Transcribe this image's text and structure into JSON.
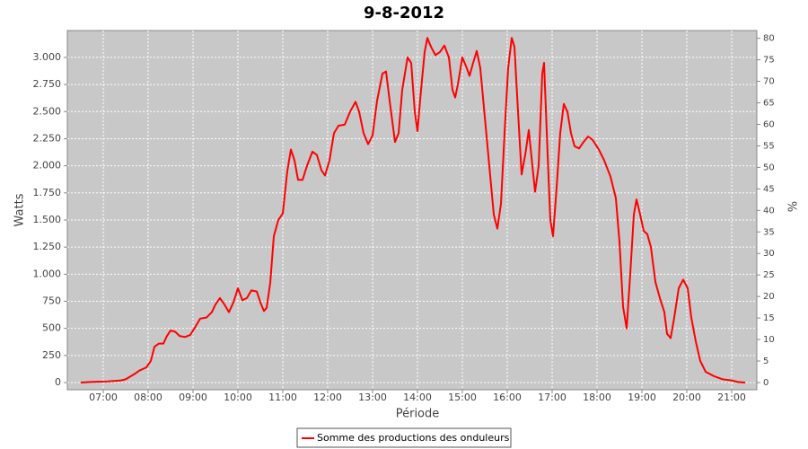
{
  "chart_data": {
    "type": "line",
    "title": "9-8-2012",
    "x_label": "Période",
    "y_label": "Watts",
    "y2_label": "%",
    "xlim": [
      6.2,
      21.56
    ],
    "xticks": [
      {
        "value": 7,
        "label": "07:00"
      },
      {
        "value": 8,
        "label": "08:00"
      },
      {
        "value": 9,
        "label": "09:00"
      },
      {
        "value": 10,
        "label": "10:00"
      },
      {
        "value": 11,
        "label": "11:00"
      },
      {
        "value": 12,
        "label": "12:00"
      },
      {
        "value": 13,
        "label": "13:00"
      },
      {
        "value": 14,
        "label": "14:00"
      },
      {
        "value": 15,
        "label": "15:00"
      },
      {
        "value": 16,
        "label": "16:00"
      },
      {
        "value": 17,
        "label": "17:00"
      },
      {
        "value": 18,
        "label": "18:00"
      },
      {
        "value": 19,
        "label": "19:00"
      },
      {
        "value": 20,
        "label": "20:00"
      },
      {
        "value": 21,
        "label": "21:00"
      }
    ],
    "ylim": [
      -66,
      3248
    ],
    "yticks": [
      0,
      250,
      500,
      750,
      {
        "value": 1000,
        "label": "1.000"
      },
      {
        "value": 1250,
        "label": "1.250"
      },
      {
        "value": 1500,
        "label": "1.500"
      },
      {
        "value": 1750,
        "label": "1.750"
      },
      {
        "value": 2000,
        "label": "2.000"
      },
      {
        "value": 2250,
        "label": "2.250"
      },
      {
        "value": 2500,
        "label": "2.500"
      },
      {
        "value": 2750,
        "label": "2.750"
      },
      {
        "value": 3000,
        "label": "3.000"
      }
    ],
    "y2lim": [
      -1.67,
      81.8
    ],
    "y2ticks": [
      0,
      5,
      10,
      15,
      20,
      25,
      30,
      35,
      40,
      45,
      50,
      55,
      60,
      65,
      70,
      75,
      80
    ],
    "grid": true,
    "legend": "bottom",
    "x": [
      6.5,
      6.7,
      7.1,
      7.4,
      7.5,
      7.7,
      7.8,
      7.96,
      8.06,
      8.14,
      8.24,
      8.34,
      8.42,
      8.5,
      8.6,
      8.7,
      8.82,
      8.94,
      9.06,
      9.16,
      9.3,
      9.42,
      9.5,
      9.6,
      9.7,
      9.8,
      9.9,
      10.0,
      10.1,
      10.2,
      10.3,
      10.42,
      10.5,
      10.58,
      10.64,
      10.72,
      10.8,
      10.9,
      11.0,
      11.1,
      11.18,
      11.26,
      11.34,
      11.44,
      11.54,
      11.66,
      11.76,
      11.86,
      11.94,
      12.04,
      12.14,
      12.24,
      12.38,
      12.5,
      12.62,
      12.7,
      12.8,
      12.9,
      13.0,
      13.1,
      13.22,
      13.3,
      13.38,
      13.5,
      13.58,
      13.66,
      13.78,
      13.86,
      13.94,
      14.0,
      14.08,
      14.16,
      14.22,
      14.3,
      14.4,
      14.5,
      14.6,
      14.7,
      14.78,
      14.84,
      14.9,
      15.0,
      15.1,
      15.16,
      15.24,
      15.32,
      15.4,
      15.5,
      15.6,
      15.7,
      15.78,
      15.86,
      15.94,
      16.02,
      16.1,
      16.16,
      16.24,
      16.32,
      16.4,
      16.48,
      16.56,
      16.62,
      16.7,
      16.78,
      16.82,
      16.9,
      16.96,
      17.02,
      17.1,
      17.18,
      17.26,
      17.34,
      17.42,
      17.5,
      17.6,
      17.7,
      17.8,
      17.9,
      18.04,
      18.16,
      18.3,
      18.42,
      18.5,
      18.58,
      18.66,
      18.74,
      18.82,
      18.88,
      18.96,
      19.04,
      19.12,
      19.2,
      19.3,
      19.4,
      19.5,
      19.56,
      19.64,
      19.72,
      19.82,
      19.92,
      20.02,
      20.1,
      20.2,
      20.3,
      20.42,
      20.6,
      20.8,
      21.0,
      21.14,
      21.3
    ],
    "series": [
      {
        "name": "Somme des productions des onduleurs",
        "color": "#ff0000",
        "values": [
          0,
          5,
          10,
          20,
          30,
          80,
          110,
          140,
          200,
          330,
          360,
          360,
          430,
          480,
          470,
          430,
          420,
          440,
          520,
          590,
          600,
          650,
          720,
          780,
          720,
          650,
          740,
          870,
          760,
          780,
          850,
          840,
          740,
          660,
          690,
          920,
          1350,
          1500,
          1560,
          1950,
          2150,
          2050,
          1870,
          1870,
          2000,
          2130,
          2100,
          1960,
          1910,
          2050,
          2300,
          2370,
          2380,
          2500,
          2590,
          2500,
          2300,
          2200,
          2280,
          2600,
          2850,
          2870,
          2600,
          2220,
          2300,
          2700,
          3000,
          2950,
          2500,
          2320,
          2700,
          3050,
          3180,
          3100,
          3020,
          3050,
          3110,
          3000,
          2700,
          2630,
          2750,
          3000,
          2900,
          2830,
          2950,
          3060,
          2900,
          2450,
          2000,
          1550,
          1420,
          1650,
          2300,
          2900,
          3180,
          3100,
          2500,
          1920,
          2100,
          2330,
          2000,
          1760,
          2000,
          2850,
          2950,
          2100,
          1500,
          1350,
          1800,
          2300,
          2570,
          2500,
          2300,
          2180,
          2160,
          2220,
          2270,
          2240,
          2150,
          2050,
          1900,
          1700,
          1300,
          700,
          500,
          1000,
          1550,
          1690,
          1550,
          1400,
          1370,
          1250,
          930,
          780,
          650,
          450,
          410,
          600,
          870,
          950,
          870,
          600,
          380,
          200,
          100,
          60,
          30,
          20,
          5,
          0
        ]
      }
    ]
  }
}
